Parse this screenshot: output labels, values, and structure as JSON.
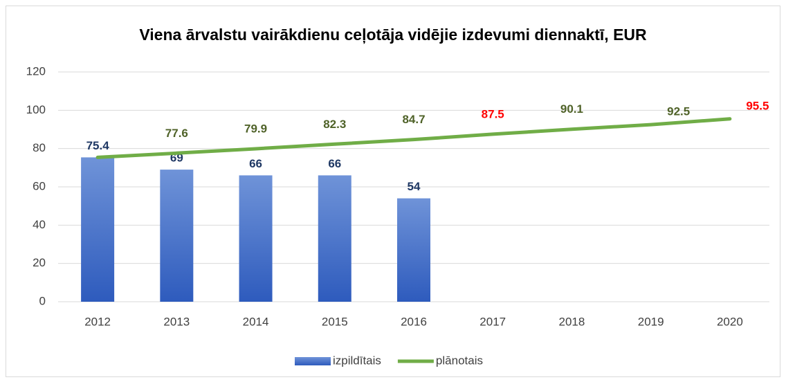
{
  "chart_data": {
    "type": "bar_line",
    "title": "Viena ārvalstu vairākdienu ceļotāja vidējie izdevumi diennaktī, EUR",
    "categories": [
      "2012",
      "2013",
      "2014",
      "2015",
      "2016",
      "2017",
      "2018",
      "2019",
      "2020"
    ],
    "series": [
      {
        "name": "izpildītais",
        "type": "bar",
        "color": "#4472c4",
        "label_color": "#1f3864",
        "values": [
          75.4,
          69,
          66,
          66,
          54,
          null,
          null,
          null,
          null
        ]
      },
      {
        "name": "plānotais",
        "type": "line",
        "color": "#70ad47",
        "values": [
          75.4,
          77.6,
          79.9,
          82.3,
          84.7,
          87.5,
          90.1,
          92.5,
          95.5
        ],
        "label_colors": [
          null,
          "#4f6228",
          "#4f6228",
          "#4f6228",
          "#4f6228",
          "#ff0000",
          "#4f6228",
          "#4f6228",
          "#ff0000"
        ]
      }
    ],
    "ylim": [
      0,
      120
    ],
    "yticks": [
      0,
      20,
      40,
      60,
      80,
      100,
      120
    ],
    "grid": true,
    "legend": "bottom"
  }
}
